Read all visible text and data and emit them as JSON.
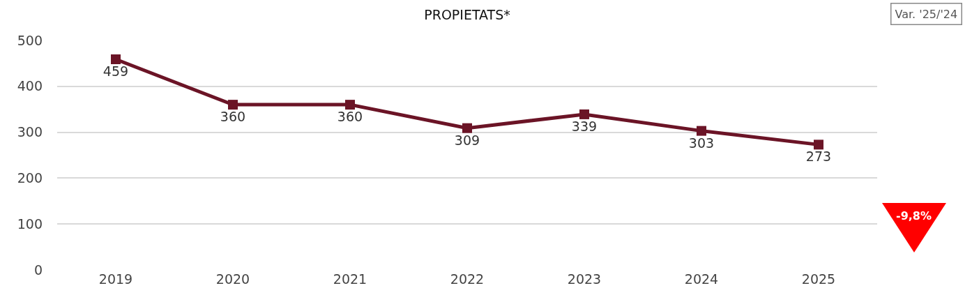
{
  "chart_data": {
    "type": "line",
    "title": "PROPIETATS*",
    "categories": [
      "2019",
      "2020",
      "2021",
      "2022",
      "2023",
      "2024",
      "2025"
    ],
    "series": [
      {
        "color": "#6b1426",
        "values": [
          459,
          360,
          360,
          309,
          339,
          303,
          273
        ]
      }
    ],
    "ylim": [
      0,
      500
    ],
    "yticks": [
      0,
      100,
      200,
      300,
      400,
      500
    ],
    "grid": "y",
    "legend": false,
    "marker": "square",
    "line_style": "solid",
    "data_labels": true,
    "annotations": [
      "Var. '25/'24",
      "-9,8%"
    ]
  }
}
